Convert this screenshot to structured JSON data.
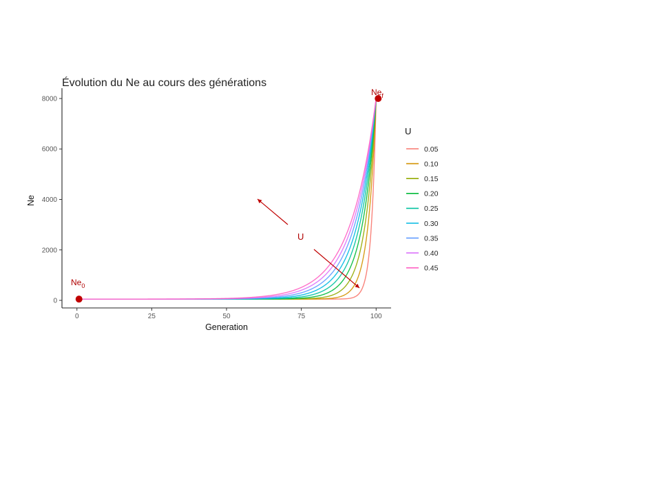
{
  "chart_data": {
    "type": "line",
    "title": "Évolution du Ne au cours des générations",
    "xlabel": "Generation",
    "ylabel": "Ne",
    "xlim": [
      -5,
      105
    ],
    "ylim": [
      -300,
      8300
    ],
    "x_ticks": [
      0,
      25,
      50,
      75,
      100
    ],
    "y_ticks": [
      0,
      2000,
      4000,
      6000,
      8000
    ],
    "grid": false,
    "legend": {
      "title": "U",
      "placement": "right"
    },
    "generations": 100,
    "Ne0": 50,
    "Nef": 8000,
    "series": [
      {
        "name": "0.05",
        "U": 0.05,
        "color": "#F8766D"
      },
      {
        "name": "0.10",
        "U": 0.1,
        "color": "#D39200"
      },
      {
        "name": "0.15",
        "U": 0.15,
        "color": "#93AA00"
      },
      {
        "name": "0.20",
        "U": 0.2,
        "color": "#00BA38"
      },
      {
        "name": "0.25",
        "U": 0.25,
        "color": "#00C19F"
      },
      {
        "name": "0.30",
        "U": 0.3,
        "color": "#00B9E3"
      },
      {
        "name": "0.35",
        "U": 0.35,
        "color": "#619CFF"
      },
      {
        "name": "0.40",
        "U": 0.4,
        "color": "#DB72FB"
      },
      {
        "name": "0.45",
        "U": 0.45,
        "color": "#FF61C3"
      }
    ],
    "annotations": [
      {
        "label": "Ne",
        "subscript": "0",
        "x": 0,
        "y": 50
      },
      {
        "label": "Ne",
        "subscript": "f",
        "x": 100,
        "y": 8000
      },
      {
        "label": "U"
      }
    ],
    "annotation_color": "#C00000"
  }
}
